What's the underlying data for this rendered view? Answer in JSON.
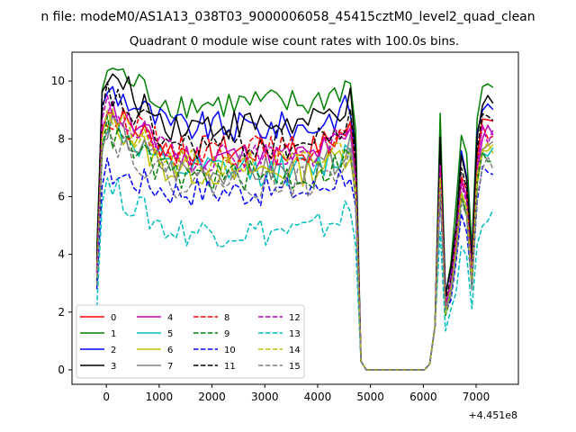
{
  "figure": {
    "suptitle": "n file: modeM0/AS1A13_038T03_9000006058_45415cztM0_level2_quad_clean",
    "offset_label": "+4.451e8"
  },
  "chart_data": {
    "type": "line",
    "title": "Quadrant 0 module wise count rates with 100.0s bins.",
    "xlabel": "",
    "ylabel": "",
    "xlim": [
      -650,
      7800
    ],
    "ylim": [
      -0.5,
      11
    ],
    "x_ticks": [
      0,
      1000,
      2000,
      3000,
      4000,
      5000,
      6000,
      7000
    ],
    "y_ticks": [
      0,
      2,
      4,
      6,
      8,
      10
    ],
    "grid": false,
    "legend": {
      "placement": "lower-left",
      "columns": 4
    },
    "series": [
      {
        "name": "0",
        "color": "#ff0000",
        "dash": "solid",
        "level": 7.6,
        "peak": 9.0,
        "decay": 0.6
      },
      {
        "name": "1",
        "color": "#008000",
        "dash": "solid",
        "level": 9.2,
        "peak": 10.5,
        "decay": 0.8
      },
      {
        "name": "2",
        "color": "#0000ff",
        "dash": "solid",
        "level": 8.4,
        "peak": 9.8,
        "decay": 0.7
      },
      {
        "name": "3",
        "color": "#000000",
        "dash": "solid",
        "level": 8.5,
        "peak": 10.2,
        "decay": 1.0
      },
      {
        "name": "4",
        "color": "#bf00bf",
        "dash": "solid",
        "level": 7.4,
        "peak": 9.2,
        "decay": 0.7
      },
      {
        "name": "5",
        "color": "#00bfbf",
        "dash": "solid",
        "level": 6.9,
        "peak": 8.6,
        "decay": 0.5
      },
      {
        "name": "6",
        "color": "#bfbf00",
        "dash": "solid",
        "level": 6.9,
        "peak": 8.8,
        "decay": 0.6
      },
      {
        "name": "7",
        "color": "#808080",
        "dash": "solid",
        "level": 6.9,
        "peak": 8.5,
        "decay": 0.5
      },
      {
        "name": "8",
        "color": "#ff0000",
        "dash": "dashed",
        "level": 7.6,
        "peak": 9.0,
        "decay": 0.7
      },
      {
        "name": "9",
        "color": "#008000",
        "dash": "dashed",
        "level": 6.7,
        "peak": 8.3,
        "decay": 0.5
      },
      {
        "name": "10",
        "color": "#0000ff",
        "dash": "dashed",
        "level": 6.2,
        "peak": 6.9,
        "decay": 0.4
      },
      {
        "name": "11",
        "color": "#000000",
        "dash": "dashed",
        "level": 7.8,
        "peak": 9.6,
        "decay": 0.8
      },
      {
        "name": "12",
        "color": "#bf00bf",
        "dash": "dashed",
        "level": 7.4,
        "peak": 9.2,
        "decay": 0.7
      },
      {
        "name": "13",
        "color": "#00bfbf",
        "dash": "dashed",
        "level": 4.8,
        "peak": 6.4,
        "decay": 0.6
      },
      {
        "name": "14",
        "color": "#bfbf00",
        "dash": "dashed",
        "level": 7.1,
        "peak": 8.8,
        "decay": 0.6
      },
      {
        "name": "15",
        "color": "#808080",
        "dash": "dashed",
        "level": 6.5,
        "peak": 8.2,
        "decay": 0.5
      }
    ]
  }
}
